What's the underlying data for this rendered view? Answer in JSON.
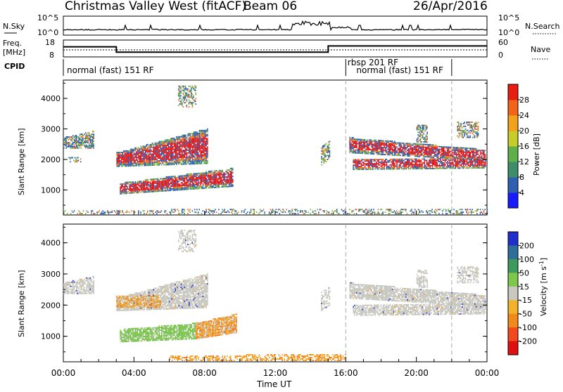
{
  "header": {
    "title": "Christmas Valley West (fitACF)",
    "beam": "Beam 06",
    "date": "26/Apr/2016"
  },
  "top_panels": {
    "nsky_label": "N.Sky",
    "nsky_ticks": [
      "10^5",
      "10^0"
    ],
    "nsearch_label": "N.Search",
    "freq_label_1": "Freq.",
    "freq_label_2": "[MHz]",
    "freq_ticks": [
      "18",
      "8"
    ],
    "nave_ticks": [
      "60",
      "0"
    ],
    "nave_label": "Nave",
    "cpid_label": "CPID",
    "freq_data": {
      "x_hours": [
        0,
        3,
        3,
        15,
        15,
        24
      ],
      "mhz": [
        14.0,
        14.0,
        10.8,
        10.8,
        14.5,
        14.5
      ]
    }
  },
  "cpid_labels": [
    {
      "text": "normal (fast) 151 RF",
      "hour": 0.2,
      "row": 2
    },
    {
      "text": "rbsp 201 RF",
      "hour": 16.1,
      "row": 1
    },
    {
      "text": "normal (fast) 151 RF",
      "hour": 16.6,
      "row": 2
    }
  ],
  "cpid_boundaries": [
    16.0,
    22.0
  ],
  "chart_data": [
    {
      "type": "heatmap",
      "name": "power",
      "ylabel": "Slant Range [km]",
      "xlim": [
        0,
        24
      ],
      "ylim": [
        180,
        4600
      ],
      "yticks": [
        1000,
        2000,
        3000,
        4000
      ],
      "colorbar_label": "Power [dB]",
      "colorbar_ticks": [
        "4",
        "8",
        "12",
        "16",
        "20",
        "24",
        "28"
      ],
      "colorbar_colors": [
        "#1a1aff",
        "#2e5fb0",
        "#3e8e6a",
        "#5fb04a",
        "#c7cc2a",
        "#f2a21a",
        "#f26418",
        "#e81f10"
      ],
      "colors": {
        "low": "#2a5ab0",
        "mid": "#6fb040",
        "high": "#f06a1a",
        "peak": "#e01010"
      }
    },
    {
      "type": "heatmap",
      "name": "velocity",
      "ylabel": "Slant Range [km]",
      "xlabel": "Time UT",
      "xlim": [
        0,
        24
      ],
      "ylim": [
        180,
        4600
      ],
      "yticks": [
        1000,
        2000,
        3000,
        4000
      ],
      "xticks": [
        "00:00",
        "04:00",
        "08:00",
        "12:00",
        "16:00",
        "20:00",
        "00:00"
      ],
      "colorbar_label": "Velocity [m s^-1]",
      "colorbar_ticks": [
        "200",
        "100",
        "50",
        "15",
        "-15",
        "-50",
        "-100",
        "-200"
      ],
      "colorbar_colors": [
        "#1f2ecc",
        "#2e6e9a",
        "#3c9a5a",
        "#7cc84a",
        "#c8c8c0",
        "#f2b22a",
        "#f28a1a",
        "#f24a1a",
        "#e01010"
      ],
      "colors": {
        "ground": "#c4c4bc",
        "neg": "#f0a020",
        "strongneg": "#f07010",
        "pos": "#70c040",
        "far": "#1f2ecc"
      }
    }
  ]
}
